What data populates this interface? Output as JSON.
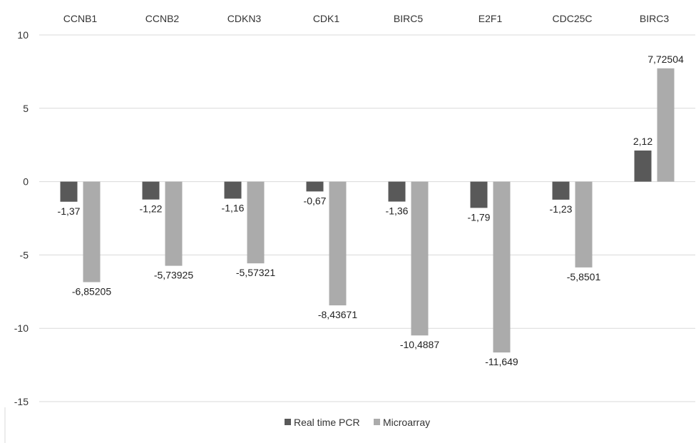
{
  "chart_data": {
    "type": "bar",
    "categories": [
      "CCNB1",
      "CCNB2",
      "CDKN3",
      "CDK1",
      "BIRC5",
      "E2F1",
      "CDC25C",
      "BIRC3"
    ],
    "series": [
      {
        "name": "Real time PCR",
        "color": "#595959",
        "values": [
          -1.37,
          -1.22,
          -1.16,
          -0.67,
          -1.36,
          -1.79,
          -1.23,
          2.12
        ],
        "labels": [
          "-1,37",
          "-1,22",
          "-1,16",
          "-0,67",
          "-1,36",
          "-1,79",
          "-1,23",
          "2,12"
        ]
      },
      {
        "name": "Microarray",
        "color": "#ababab",
        "values": [
          -6.85205,
          -5.73925,
          -5.57321,
          -8.43671,
          -10.4887,
          -11.649,
          -5.8501,
          7.72504
        ],
        "labels": [
          "-6,85205",
          "-5,73925",
          "-5,57321",
          "-8,43671",
          "-10,4887",
          "-11,649",
          "-5,8501",
          "7,72504"
        ]
      }
    ],
    "yticks": [
      10,
      5,
      0,
      -5,
      -10,
      -15
    ],
    "ylim": [
      -15,
      10
    ],
    "title": "",
    "xlabel": "",
    "ylabel": "",
    "grid": true,
    "legend_position": "bottom",
    "category_label_position": "top",
    "colors": {
      "grid": "#d9d9d9"
    }
  }
}
